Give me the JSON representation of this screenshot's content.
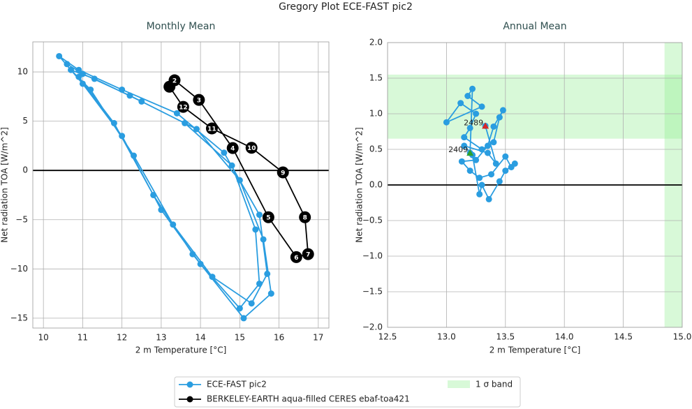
{
  "title": "Gregory Plot ECE-FAST pic2",
  "chart_data": [
    {
      "type": "line",
      "title": "Monthly Mean",
      "xlabel": "2 m Temperature [°C]",
      "ylabel": "Net radiation TOA [W/m^2]",
      "xlim": [
        9.73,
        17.27
      ],
      "ylim": [
        -16.0,
        13.05
      ],
      "xticks": [
        10,
        11,
        12,
        13,
        14,
        15,
        16,
        17
      ],
      "yticks": [
        {
          "value": -15,
          "label": "−15"
        },
        {
          "value": -10,
          "label": "−10"
        },
        {
          "value": -5,
          "label": "−5"
        },
        0,
        5,
        10
      ],
      "grid": true,
      "hline": 0,
      "series": [
        {
          "name": "ECE-FAST pic2",
          "color": "#2a9de0",
          "x": [
            10.6,
            11.0,
            12.2,
            13.6,
            14.8,
            15.4,
            15.5,
            15.0,
            14.0,
            13.0,
            12.0,
            11.0,
            10.4,
            10.9,
            12.0,
            13.4,
            14.6,
            15.5,
            15.7,
            15.3,
            14.3,
            13.3,
            12.3,
            11.2,
            10.7,
            11.3,
            12.5,
            13.9,
            15.0,
            15.6,
            15.8,
            15.1,
            13.8,
            12.8,
            11.8,
            10.9
          ],
          "values": [
            10.8,
            9.8,
            7.6,
            4.8,
            0.5,
            -6,
            -11.5,
            -14,
            -9.5,
            -4,
            3.5,
            8.8,
            11.6,
            10.2,
            8.2,
            5.8,
            1.8,
            -4.5,
            -10.5,
            -13.5,
            -10.8,
            -5.5,
            1.5,
            8.2,
            10.2,
            9.3,
            7.0,
            4.2,
            -1,
            -7,
            -12.5,
            -15,
            -8.5,
            -2.5,
            4.8,
            9.5
          ]
        },
        {
          "name": "BERKELEY-EARTH aqua-filled CERES ebaf-toa421",
          "color": "#000000",
          "x": [
            13.21,
            13.34,
            13.96,
            14.82,
            15.73,
            16.44,
            16.74,
            16.66,
            16.1,
            15.3,
            14.29,
            13.56,
            13.21
          ],
          "values": [
            8.5,
            9.15,
            7.16,
            2.27,
            -4.75,
            -8.8,
            -8.5,
            -4.75,
            -0.2,
            2.3,
            4.26,
            6.45,
            8.5
          ],
          "point_labels": [
            "1",
            "2",
            "3",
            "4",
            "5",
            "6",
            "7",
            "8",
            "9",
            "10",
            "11",
            "12",
            null
          ]
        }
      ]
    },
    {
      "type": "line",
      "title": "Annual Mean",
      "xlabel": "2 m Temperature [°C]",
      "ylabel": "Net radiation TOA [W/m^2]",
      "xlim": [
        12.5,
        15.0
      ],
      "ylim": [
        -2.0,
        2.0
      ],
      "xticks": [
        12.5,
        {
          "value": 13,
          "label": "13.0"
        },
        13.5,
        {
          "value": 14,
          "label": "14.0"
        },
        14.5,
        {
          "value": 15,
          "label": "15.0"
        }
      ],
      "yticks": [
        {
          "value": -2,
          "label": "−2.0"
        },
        {
          "value": -1.5,
          "label": "−1.5"
        },
        {
          "value": -1,
          "label": "−1.0"
        },
        {
          "value": -0.5,
          "label": "−0.5"
        },
        {
          "value": 0,
          "label": "0.0"
        },
        0.5,
        {
          "value": 1,
          "label": "1.0"
        },
        1.5,
        {
          "value": 2,
          "label": "2.0"
        }
      ],
      "grid": true,
      "hline": 0,
      "band": {
        "name": "1 σ band",
        "color": "#90ee90",
        "x": [
          14.85,
          15.0
        ],
        "y": [
          0.65,
          1.55
        ]
      },
      "series": [
        {
          "name": "ECE-FAST pic2",
          "color": "#2a9de0",
          "x": [
            13.2,
            13.22,
            13.18,
            13.3,
            13.0,
            13.12,
            13.25,
            13.2,
            13.15,
            13.3,
            13.4,
            13.45,
            13.48,
            13.4,
            13.35,
            13.25,
            13.13,
            13.2,
            13.28,
            13.38,
            13.5,
            13.55,
            13.58,
            13.5,
            13.45,
            13.36,
            13.3,
            13.28,
            13.22,
            13.15,
            13.35,
            13.42,
            13.33
          ],
          "values": [
            0.45,
            1.35,
            1.25,
            1.1,
            0.88,
            1.15,
            1.0,
            0.8,
            0.67,
            0.5,
            0.6,
            0.95,
            1.05,
            0.82,
            0.55,
            0.35,
            0.33,
            0.2,
            0.1,
            0.15,
            0.4,
            0.25,
            0.3,
            0.2,
            0.05,
            -0.2,
            0.0,
            -0.13,
            0.42,
            0.55,
            0.45,
            0.3,
            0.83
          ]
        }
      ],
      "annotations": [
        {
          "text": "2409",
          "x": 13.2,
          "y": 0.45,
          "color": "#2ca02c"
        },
        {
          "text": "2489",
          "x": 13.33,
          "y": 0.83,
          "color": "#d62728"
        }
      ]
    }
  ]
}
